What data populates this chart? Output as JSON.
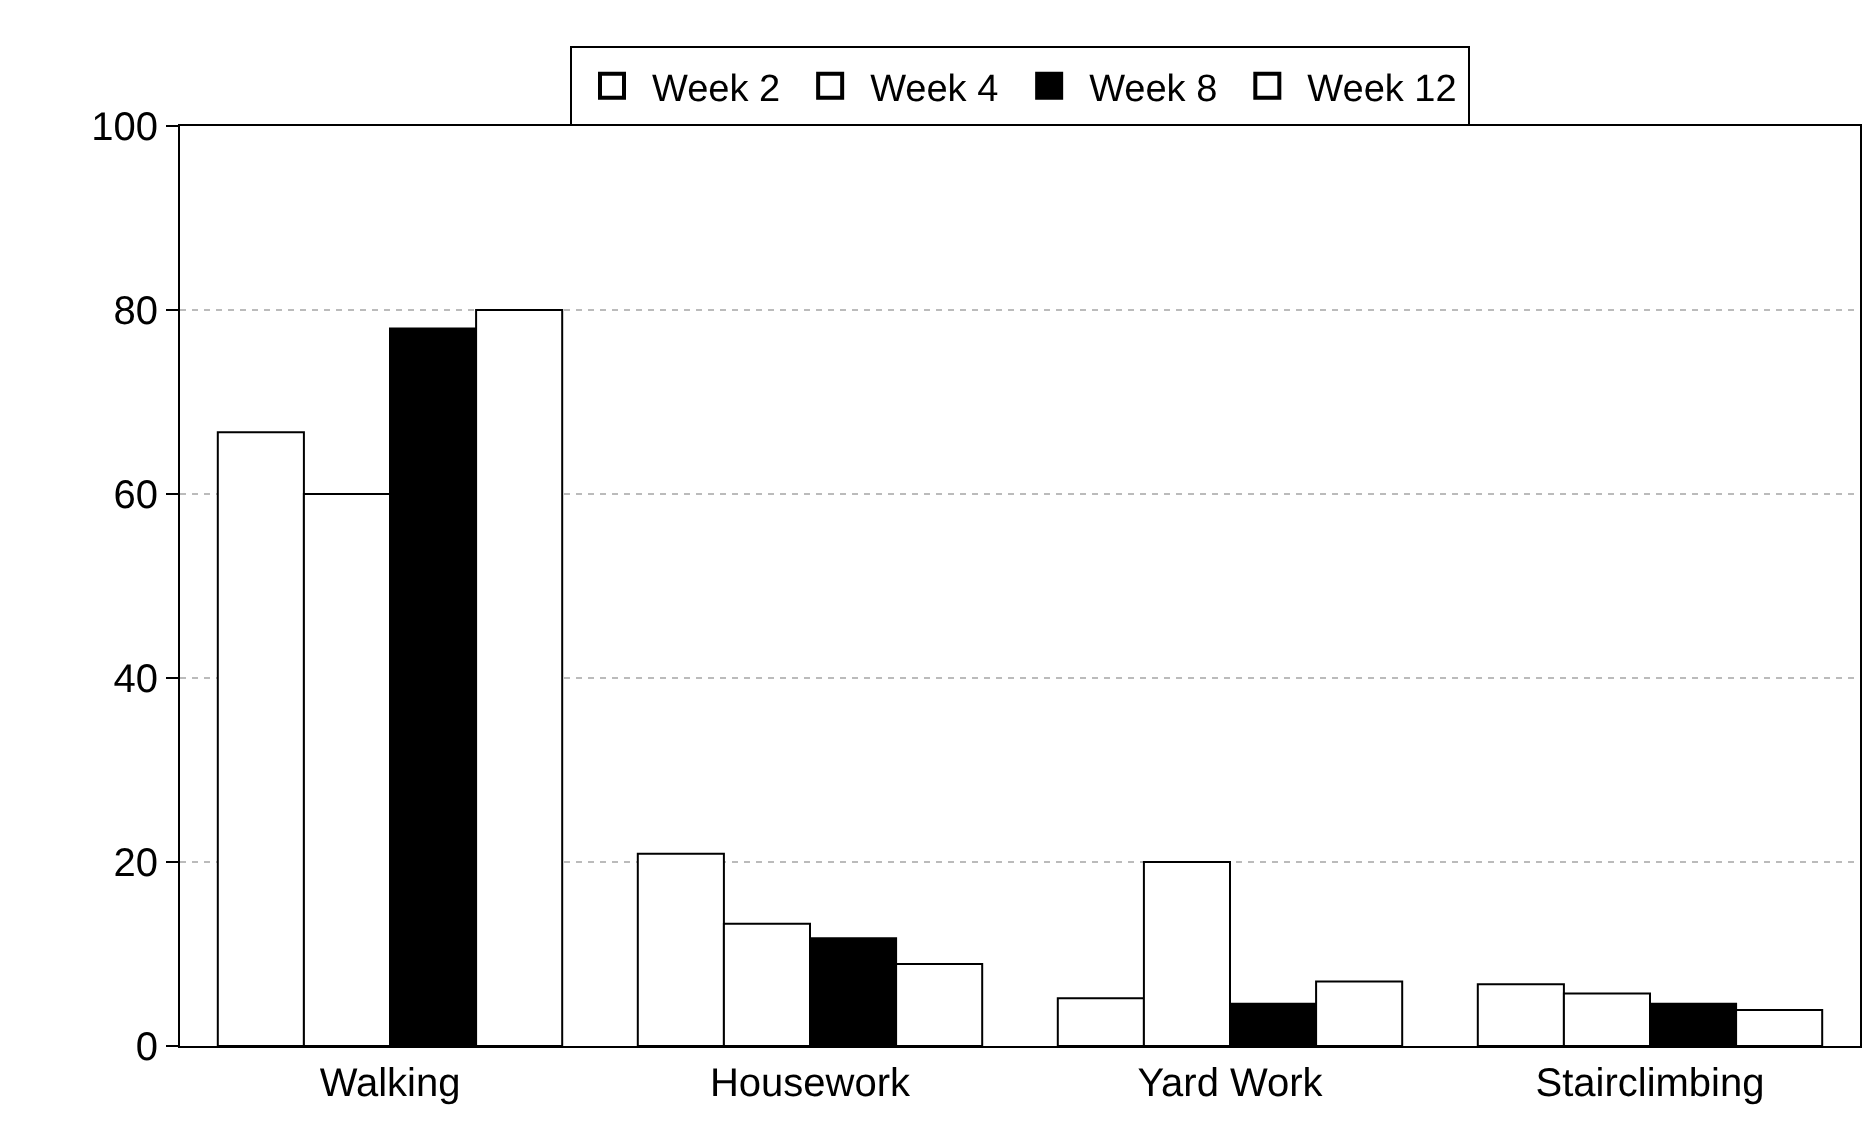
{
  "chart_data": {
    "type": "bar",
    "categories": [
      "Walking",
      "Housework",
      "Yard Work",
      "Stairclimbing"
    ],
    "series": [
      {
        "name": "Week 2",
        "color": "#ffffff",
        "values": [
          66.7,
          20.9,
          5.2,
          6.7
        ]
      },
      {
        "name": "Week 4",
        "color": "#ffffff",
        "values": [
          60,
          13.3,
          20,
          5.7
        ]
      },
      {
        "name": "Week 8",
        "color": "#000000",
        "values": [
          78,
          11.7,
          4.6,
          4.6
        ]
      },
      {
        "name": "Week 12",
        "color": "#ffffff",
        "values": [
          80,
          8.9,
          7,
          3.9
        ]
      }
    ],
    "ylim": [
      0,
      100
    ],
    "yticks": [
      0,
      20,
      40,
      60,
      80,
      100
    ],
    "grid": "y",
    "legend": "top"
  }
}
